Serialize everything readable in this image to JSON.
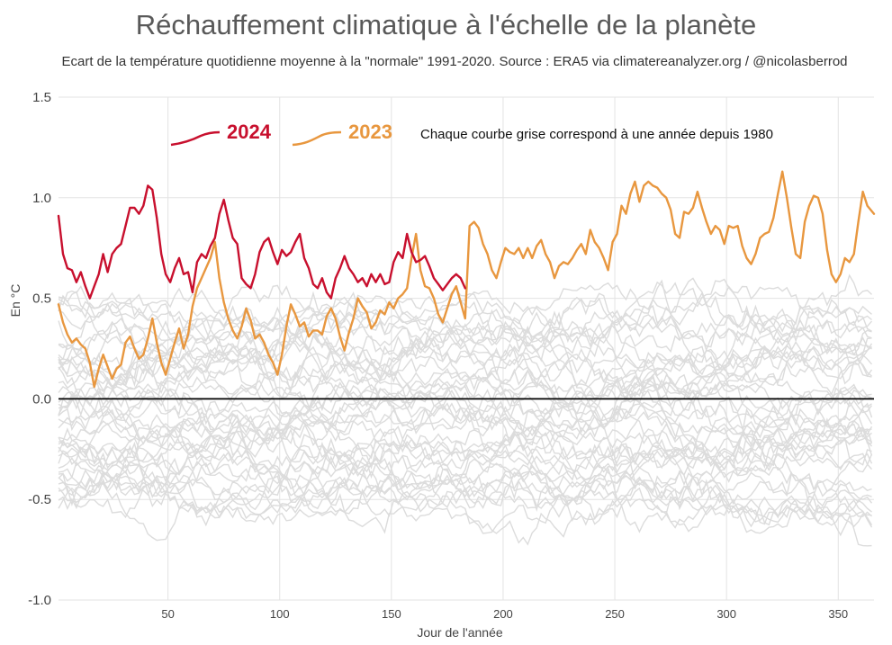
{
  "title": "Réchauffement climatique à l'échelle de la planète",
  "subtitle": "Ecart de la température quotidienne moyenne à la \"normale\" 1991-2020. Source : ERA5 via climatereanalyzer.org / @nicolasberrod",
  "chart_data": {
    "type": "line",
    "xlabel": "Jour de l'année",
    "ylabel": "En °C",
    "xlim": [
      1,
      366
    ],
    "ylim": [
      -1.0,
      1.5
    ],
    "x_ticks": [
      50,
      100,
      150,
      200,
      250,
      300,
      350
    ],
    "y_ticks": [
      {
        "value": -1.0,
        "label": "-1.0"
      },
      {
        "value": -0.5,
        "label": "-0.5"
      },
      {
        "value": 0.0,
        "label": "0.0"
      },
      {
        "value": 0.5,
        "label": "0.5"
      },
      {
        "value": 1.0,
        "label": "1.0"
      },
      {
        "value": 1.5,
        "label": "1.5"
      }
    ],
    "grid": true,
    "zero_line": true,
    "annotation": "Chaque courbe grise correspond à une année depuis 1980",
    "colors": {
      "y2024": "#c8102e",
      "y2023": "#e8973f",
      "past_years": "#dcdcdc",
      "grid": "#e3e3e3",
      "zero_line": "#000000"
    },
    "series": [
      {
        "name": "2024",
        "color": "#c8102e",
        "points": [
          [
            1,
            0.91
          ],
          [
            3,
            0.72
          ],
          [
            5,
            0.65
          ],
          [
            7,
            0.64
          ],
          [
            9,
            0.58
          ],
          [
            11,
            0.63
          ],
          [
            13,
            0.56
          ],
          [
            15,
            0.5
          ],
          [
            17,
            0.56
          ],
          [
            19,
            0.62
          ],
          [
            21,
            0.72
          ],
          [
            23,
            0.63
          ],
          [
            25,
            0.72
          ],
          [
            27,
            0.75
          ],
          [
            29,
            0.77
          ],
          [
            31,
            0.86
          ],
          [
            33,
            0.95
          ],
          [
            35,
            0.95
          ],
          [
            37,
            0.92
          ],
          [
            39,
            0.96
          ],
          [
            41,
            1.06
          ],
          [
            43,
            1.04
          ],
          [
            45,
            0.9
          ],
          [
            47,
            0.72
          ],
          [
            49,
            0.62
          ],
          [
            51,
            0.58
          ],
          [
            53,
            0.65
          ],
          [
            55,
            0.7
          ],
          [
            57,
            0.62
          ],
          [
            59,
            0.63
          ],
          [
            61,
            0.53
          ],
          [
            63,
            0.68
          ],
          [
            65,
            0.72
          ],
          [
            67,
            0.7
          ],
          [
            69,
            0.76
          ],
          [
            71,
            0.8
          ],
          [
            73,
            0.92
          ],
          [
            75,
            0.99
          ],
          [
            77,
            0.89
          ],
          [
            79,
            0.8
          ],
          [
            81,
            0.77
          ],
          [
            83,
            0.6
          ],
          [
            85,
            0.57
          ],
          [
            87,
            0.55
          ],
          [
            89,
            0.62
          ],
          [
            91,
            0.73
          ],
          [
            93,
            0.78
          ],
          [
            95,
            0.8
          ],
          [
            97,
            0.73
          ],
          [
            99,
            0.67
          ],
          [
            101,
            0.74
          ],
          [
            103,
            0.71
          ],
          [
            105,
            0.73
          ],
          [
            107,
            0.78
          ],
          [
            109,
            0.82
          ],
          [
            111,
            0.7
          ],
          [
            113,
            0.65
          ],
          [
            115,
            0.57
          ],
          [
            117,
            0.55
          ],
          [
            119,
            0.6
          ],
          [
            121,
            0.53
          ],
          [
            123,
            0.5
          ],
          [
            125,
            0.6
          ],
          [
            127,
            0.65
          ],
          [
            129,
            0.71
          ],
          [
            131,
            0.65
          ],
          [
            133,
            0.62
          ],
          [
            135,
            0.58
          ],
          [
            137,
            0.6
          ],
          [
            139,
            0.56
          ],
          [
            141,
            0.62
          ],
          [
            143,
            0.58
          ],
          [
            145,
            0.62
          ],
          [
            147,
            0.57
          ],
          [
            149,
            0.58
          ],
          [
            151,
            0.68
          ],
          [
            153,
            0.73
          ],
          [
            155,
            0.7
          ],
          [
            157,
            0.82
          ],
          [
            159,
            0.73
          ],
          [
            161,
            0.68
          ],
          [
            163,
            0.69
          ],
          [
            165,
            0.71
          ],
          [
            167,
            0.66
          ],
          [
            169,
            0.6
          ],
          [
            171,
            0.57
          ],
          [
            173,
            0.54
          ],
          [
            175,
            0.57
          ],
          [
            177,
            0.6
          ],
          [
            179,
            0.62
          ],
          [
            181,
            0.6
          ],
          [
            183,
            0.55
          ]
        ]
      },
      {
        "name": "2023",
        "color": "#e8973f",
        "points": [
          [
            1,
            0.47
          ],
          [
            3,
            0.38
          ],
          [
            5,
            0.32
          ],
          [
            7,
            0.28
          ],
          [
            9,
            0.3
          ],
          [
            11,
            0.27
          ],
          [
            13,
            0.25
          ],
          [
            15,
            0.18
          ],
          [
            17,
            0.06
          ],
          [
            19,
            0.15
          ],
          [
            21,
            0.22
          ],
          [
            23,
            0.16
          ],
          [
            25,
            0.1
          ],
          [
            27,
            0.15
          ],
          [
            29,
            0.17
          ],
          [
            31,
            0.28
          ],
          [
            33,
            0.31
          ],
          [
            35,
            0.25
          ],
          [
            37,
            0.2
          ],
          [
            39,
            0.22
          ],
          [
            41,
            0.3
          ],
          [
            43,
            0.4
          ],
          [
            45,
            0.28
          ],
          [
            47,
            0.18
          ],
          [
            49,
            0.12
          ],
          [
            51,
            0.2
          ],
          [
            53,
            0.28
          ],
          [
            55,
            0.35
          ],
          [
            57,
            0.25
          ],
          [
            59,
            0.32
          ],
          [
            61,
            0.46
          ],
          [
            63,
            0.55
          ],
          [
            65,
            0.6
          ],
          [
            67,
            0.65
          ],
          [
            69,
            0.7
          ],
          [
            71,
            0.78
          ],
          [
            73,
            0.6
          ],
          [
            75,
            0.48
          ],
          [
            77,
            0.4
          ],
          [
            79,
            0.34
          ],
          [
            81,
            0.3
          ],
          [
            83,
            0.36
          ],
          [
            85,
            0.45
          ],
          [
            87,
            0.39
          ],
          [
            89,
            0.3
          ],
          [
            91,
            0.32
          ],
          [
            93,
            0.28
          ],
          [
            95,
            0.22
          ],
          [
            97,
            0.18
          ],
          [
            99,
            0.12
          ],
          [
            101,
            0.22
          ],
          [
            103,
            0.36
          ],
          [
            105,
            0.47
          ],
          [
            107,
            0.42
          ],
          [
            109,
            0.36
          ],
          [
            111,
            0.38
          ],
          [
            113,
            0.31
          ],
          [
            115,
            0.34
          ],
          [
            117,
            0.34
          ],
          [
            119,
            0.32
          ],
          [
            121,
            0.41
          ],
          [
            123,
            0.45
          ],
          [
            125,
            0.4
          ],
          [
            127,
            0.31
          ],
          [
            129,
            0.24
          ],
          [
            131,
            0.33
          ],
          [
            133,
            0.4
          ],
          [
            135,
            0.5
          ],
          [
            137,
            0.46
          ],
          [
            139,
            0.43
          ],
          [
            141,
            0.35
          ],
          [
            143,
            0.38
          ],
          [
            145,
            0.44
          ],
          [
            147,
            0.42
          ],
          [
            149,
            0.48
          ],
          [
            151,
            0.45
          ],
          [
            153,
            0.5
          ],
          [
            155,
            0.52
          ],
          [
            157,
            0.55
          ],
          [
            159,
            0.7
          ],
          [
            161,
            0.82
          ],
          [
            163,
            0.64
          ],
          [
            165,
            0.56
          ],
          [
            167,
            0.55
          ],
          [
            169,
            0.5
          ],
          [
            171,
            0.42
          ],
          [
            173,
            0.38
          ],
          [
            175,
            0.45
          ],
          [
            177,
            0.52
          ],
          [
            179,
            0.56
          ],
          [
            181,
            0.48
          ],
          [
            183,
            0.4
          ],
          [
            185,
            0.86
          ],
          [
            187,
            0.88
          ],
          [
            189,
            0.85
          ],
          [
            191,
            0.77
          ],
          [
            193,
            0.72
          ],
          [
            195,
            0.64
          ],
          [
            197,
            0.6
          ],
          [
            199,
            0.68
          ],
          [
            201,
            0.75
          ],
          [
            203,
            0.73
          ],
          [
            205,
            0.72
          ],
          [
            207,
            0.75
          ],
          [
            209,
            0.7
          ],
          [
            211,
            0.75
          ],
          [
            213,
            0.7
          ],
          [
            215,
            0.76
          ],
          [
            217,
            0.79
          ],
          [
            219,
            0.72
          ],
          [
            221,
            0.68
          ],
          [
            223,
            0.6
          ],
          [
            225,
            0.66
          ],
          [
            227,
            0.68
          ],
          [
            229,
            0.67
          ],
          [
            231,
            0.7
          ],
          [
            233,
            0.74
          ],
          [
            235,
            0.77
          ],
          [
            237,
            0.72
          ],
          [
            239,
            0.84
          ],
          [
            241,
            0.78
          ],
          [
            243,
            0.75
          ],
          [
            245,
            0.7
          ],
          [
            247,
            0.64
          ],
          [
            249,
            0.78
          ],
          [
            251,
            0.82
          ],
          [
            253,
            0.96
          ],
          [
            255,
            0.92
          ],
          [
            257,
            1.02
          ],
          [
            259,
            1.08
          ],
          [
            261,
            0.98
          ],
          [
            263,
            1.06
          ],
          [
            265,
            1.08
          ],
          [
            267,
            1.06
          ],
          [
            269,
            1.05
          ],
          [
            271,
            1.02
          ],
          [
            273,
            1.0
          ],
          [
            275,
            0.94
          ],
          [
            277,
            0.82
          ],
          [
            279,
            0.8
          ],
          [
            281,
            0.93
          ],
          [
            283,
            0.92
          ],
          [
            285,
            0.95
          ],
          [
            287,
            1.03
          ],
          [
            289,
            0.95
          ],
          [
            291,
            0.88
          ],
          [
            293,
            0.82
          ],
          [
            295,
            0.86
          ],
          [
            297,
            0.84
          ],
          [
            299,
            0.77
          ],
          [
            301,
            0.86
          ],
          [
            303,
            0.85
          ],
          [
            305,
            0.86
          ],
          [
            307,
            0.76
          ],
          [
            309,
            0.7
          ],
          [
            311,
            0.67
          ],
          [
            313,
            0.72
          ],
          [
            315,
            0.8
          ],
          [
            317,
            0.82
          ],
          [
            319,
            0.83
          ],
          [
            321,
            0.9
          ],
          [
            323,
            1.02
          ],
          [
            325,
            1.13
          ],
          [
            327,
            1.0
          ],
          [
            329,
            0.85
          ],
          [
            331,
            0.72
          ],
          [
            333,
            0.7
          ],
          [
            335,
            0.88
          ],
          [
            337,
            0.96
          ],
          [
            339,
            1.01
          ],
          [
            341,
            1.0
          ],
          [
            343,
            0.92
          ],
          [
            345,
            0.74
          ],
          [
            347,
            0.62
          ],
          [
            349,
            0.58
          ],
          [
            351,
            0.62
          ],
          [
            353,
            0.7
          ],
          [
            355,
            0.68
          ],
          [
            357,
            0.72
          ],
          [
            359,
            0.88
          ],
          [
            361,
            1.03
          ],
          [
            363,
            0.96
          ],
          [
            366,
            0.92
          ]
        ]
      }
    ]
  }
}
